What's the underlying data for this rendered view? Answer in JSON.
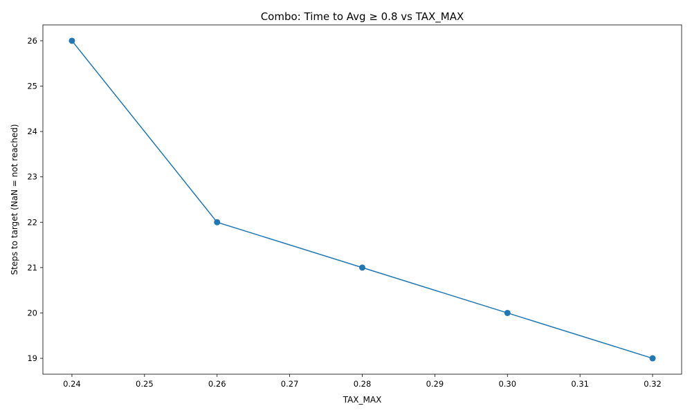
{
  "chart_data": {
    "type": "line",
    "title": "Combo: Time to Avg ≥ 0.8 vs TAX_MAX",
    "xlabel": "TAX_MAX",
    "ylabel": "Steps to target (NaN = not reached)",
    "x": [
      0.24,
      0.26,
      0.28,
      0.3,
      0.32
    ],
    "series": [
      {
        "values": [
          26,
          22,
          21,
          20,
          19
        ]
      }
    ],
    "xlim": [
      0.236,
      0.324
    ],
    "ylim": [
      18.65,
      26.35
    ],
    "xticks": [
      0.24,
      0.25,
      0.26,
      0.27,
      0.28,
      0.29,
      0.3,
      0.31,
      0.32
    ],
    "xtick_labels": [
      "0.24",
      "0.25",
      "0.26",
      "0.27",
      "0.28",
      "0.29",
      "0.30",
      "0.31",
      "0.32"
    ],
    "yticks": [
      19,
      20,
      21,
      22,
      23,
      24,
      25,
      26
    ],
    "ytick_labels": [
      "19",
      "20",
      "21",
      "22",
      "23",
      "24",
      "25",
      "26"
    ],
    "grid": false,
    "legend": "none",
    "line_color": "#1f77b4",
    "marker": "circle"
  }
}
